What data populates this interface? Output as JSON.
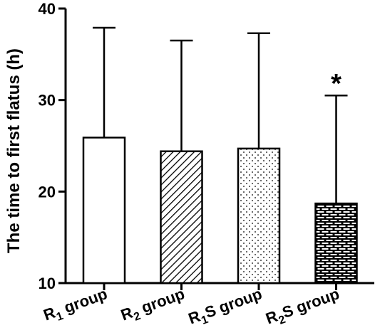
{
  "chart_data": {
    "type": "bar",
    "title": "",
    "xlabel": "",
    "ylabel": "The time to first flatus (h)",
    "ylim": [
      10,
      40
    ],
    "yticks": [
      10,
      20,
      30,
      40
    ],
    "grid": false,
    "categories": [
      {
        "main": "R",
        "sub": "1",
        "rest": " group"
      },
      {
        "main": "R",
        "sub": "2",
        "rest": " group"
      },
      {
        "main": "R",
        "sub": "1",
        "rest": "S group"
      },
      {
        "main": "R",
        "sub": "2",
        "rest": "S group"
      }
    ],
    "values": [
      25.9,
      24.4,
      24.7,
      18.7
    ],
    "error_upper": [
      37.9,
      36.5,
      37.3,
      30.5
    ],
    "fill_patterns": [
      "none",
      "diagonal-hatch",
      "dots",
      "brick"
    ],
    "annotations": [
      {
        "category_index": 3,
        "text": "*"
      }
    ]
  }
}
